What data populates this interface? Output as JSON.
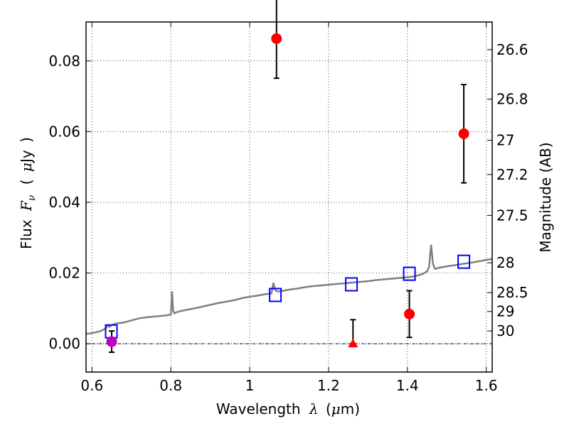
{
  "chart_data": {
    "type": "scatter",
    "title": "",
    "xlabel_parts": [
      "Wavelength",
      "λ",
      "(",
      "μ",
      "m)"
    ],
    "ylabel_parts": [
      "Flux",
      "F",
      "ν",
      "(",
      "μ",
      "Jy",
      ")"
    ],
    "y2label": "Magnitude (AB)",
    "xlim": [
      0.585,
      1.615
    ],
    "ylim": [
      -0.008,
      0.091
    ],
    "x_ticks": [
      {
        "v": 0.6,
        "label": "0.6"
      },
      {
        "v": 0.8,
        "label": "0.8"
      },
      {
        "v": 1.0,
        "label": "1"
      },
      {
        "v": 1.2,
        "label": "1.2"
      },
      {
        "v": 1.4,
        "label": "1.4"
      },
      {
        "v": 1.6,
        "label": "1.6"
      }
    ],
    "y_ticks": [
      {
        "v": 0.0,
        "label": "0.00"
      },
      {
        "v": 0.02,
        "label": "0.02"
      },
      {
        "v": 0.04,
        "label": "0.04"
      },
      {
        "v": 0.06,
        "label": "0.06"
      },
      {
        "v": 0.08,
        "label": "0.08"
      }
    ],
    "y2_ticks": [
      {
        "v": 26.6,
        "label": "26.6"
      },
      {
        "v": 26.8,
        "label": "26.8"
      },
      {
        "v": 27.0,
        "label": "27"
      },
      {
        "v": 27.2,
        "label": "27.2"
      },
      {
        "v": 27.5,
        "label": "27.5"
      },
      {
        "v": 28.0,
        "label": "28"
      },
      {
        "v": 28.5,
        "label": "28.5"
      },
      {
        "v": 29.0,
        "label": "29"
      },
      {
        "v": 30.0,
        "label": "30"
      }
    ],
    "grid": true,
    "zero_line": true,
    "model_spectrum": {
      "color": "#808080",
      "x": [
        0.585,
        0.6,
        0.62,
        0.635,
        0.64,
        0.645,
        0.65,
        0.66,
        0.68,
        0.7,
        0.72,
        0.74,
        0.76,
        0.78,
        0.8,
        0.803,
        0.806,
        0.809,
        0.812,
        0.82,
        0.84,
        0.86,
        0.88,
        0.9,
        0.92,
        0.94,
        0.96,
        0.98,
        1.0,
        1.02,
        1.04,
        1.055,
        1.06,
        1.065,
        1.07,
        1.08,
        1.1,
        1.12,
        1.14,
        1.16,
        1.18,
        1.2,
        1.22,
        1.24,
        1.26,
        1.28,
        1.3,
        1.32,
        1.34,
        1.36,
        1.38,
        1.4,
        1.42,
        1.44,
        1.45,
        1.455,
        1.46,
        1.465,
        1.47,
        1.48,
        1.5,
        1.52,
        1.54,
        1.56,
        1.58,
        1.6,
        1.615
      ],
      "y": [
        0.0028,
        0.003,
        0.0035,
        0.0043,
        0.0052,
        0.0048,
        0.0053,
        0.0057,
        0.006,
        0.0066,
        0.0072,
        0.0075,
        0.0077,
        0.0079,
        0.0082,
        0.0148,
        0.0092,
        0.0086,
        0.0088,
        0.0091,
        0.0096,
        0.01,
        0.0105,
        0.011,
        0.0115,
        0.0119,
        0.0123,
        0.0129,
        0.0133,
        0.0136,
        0.014,
        0.0142,
        0.0172,
        0.0152,
        0.0148,
        0.0149,
        0.0153,
        0.0156,
        0.016,
        0.0163,
        0.0165,
        0.0167,
        0.0169,
        0.0171,
        0.0173,
        0.0175,
        0.0177,
        0.018,
        0.0182,
        0.0184,
        0.0186,
        0.0188,
        0.0191,
        0.0198,
        0.0205,
        0.0218,
        0.028,
        0.0225,
        0.0212,
        0.0215,
        0.0219,
        0.0222,
        0.0226,
        0.0229,
        0.0233,
        0.0237,
        0.024
      ]
    },
    "model_points": {
      "color": "#0000ff",
      "marker": "open-square",
      "x": [
        0.649,
        1.065,
        1.258,
        1.405,
        1.543
      ],
      "y": [
        0.0035,
        0.0138,
        0.0168,
        0.0198,
        0.0232
      ]
    },
    "observed_points": {
      "color": "#ff0000",
      "marker": "circle",
      "x": [
        1.068,
        1.405,
        1.543
      ],
      "y": [
        0.0863,
        0.0084,
        0.0594
      ],
      "yerr": [
        0.0112,
        0.0066,
        0.0139
      ]
    },
    "upper_limit": {
      "color": "#ff0000",
      "marker": "triangle",
      "x": 1.262,
      "y": 0.0,
      "err_top": 0.0068
    },
    "magenta_point": {
      "color": "#bf00bf",
      "marker": "circle",
      "x": 0.65,
      "y": 0.0006,
      "yerr": 0.003
    }
  }
}
